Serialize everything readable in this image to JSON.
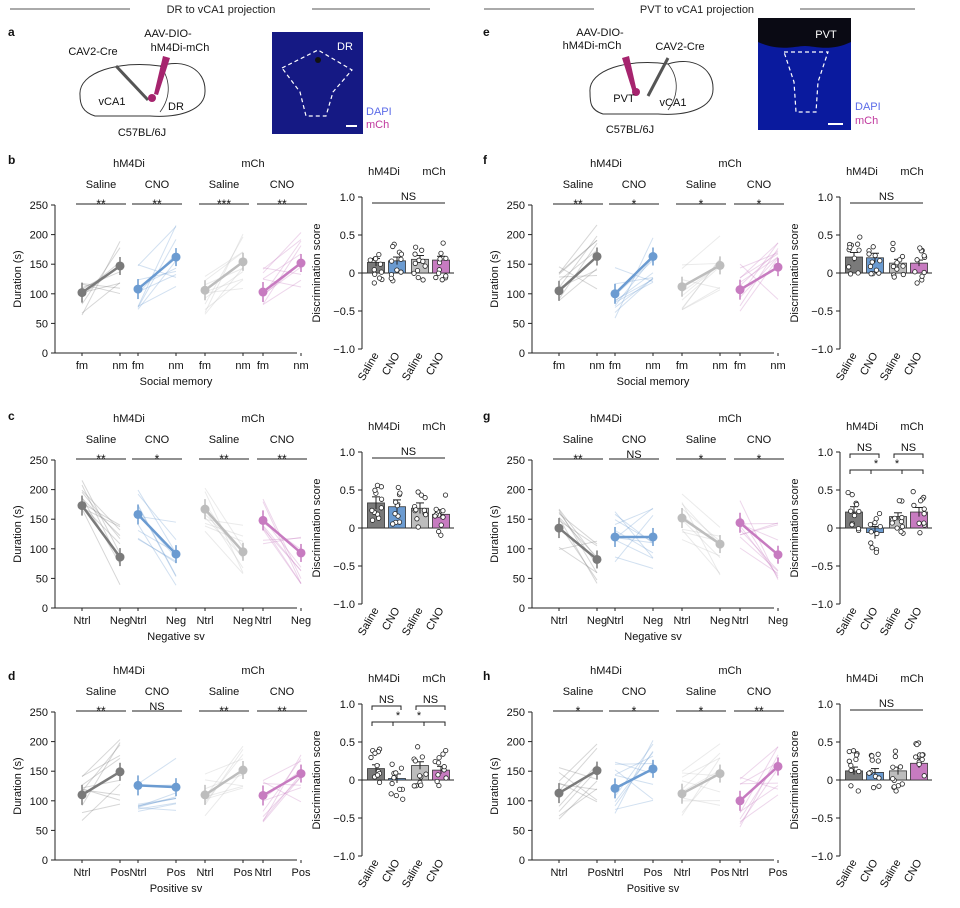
{
  "colors": {
    "hm4di_saline": "#7a7a7a",
    "hm4di_cno": "#6b9bd1",
    "mch_saline": "#bdbdbd",
    "mch_cno": "#c77bc0",
    "dapi": "#5b6be8",
    "mch_text": "#c0399e",
    "axis": "#222222"
  },
  "sections": {
    "left": {
      "header": "DR to vCA1 projection"
    },
    "right": {
      "header": "PVT to vCA1 projection"
    }
  },
  "panel_a": {
    "label": "a",
    "virus": "AAV-DIO-",
    "virus2": "hM4Di-mCh",
    "cav": "CAV2-Cre",
    "region1": "vCA1",
    "region2": "DR",
    "mouse": "C57BL/6J",
    "micrograph_label": "DR",
    "dapi": "DAPI",
    "mch": "mCh"
  },
  "panel_e": {
    "label": "e",
    "virus": "AAV-DIO-",
    "virus2": "hM4Di-mCh",
    "cav": "CAV2-Cre",
    "region1": "PVT",
    "region2": "vCA1",
    "mouse": "C57BL/6J",
    "micrograph_label": "PVT",
    "dapi": "DAPI",
    "mch": "mCh"
  },
  "chart_data": [
    {
      "panel": "b",
      "type": "line",
      "title": "",
      "ylabel": "Duration (s)",
      "xlabel": "Social memory",
      "ylim": [
        0,
        250
      ],
      "yticks": [
        0,
        50,
        100,
        150,
        200,
        250
      ],
      "group_labels": [
        "hM4Di",
        "mCh"
      ],
      "conditions": [
        "Saline",
        "CNO",
        "Saline",
        "CNO"
      ],
      "significance": [
        "**",
        "**",
        "***",
        "**"
      ],
      "xticks": [
        "fm",
        "nm"
      ],
      "series": [
        {
          "name": "hM4Di Saline",
          "values": [
            102,
            147
          ]
        },
        {
          "name": "hM4Di CNO",
          "values": [
            108,
            162
          ]
        },
        {
          "name": "mCh Saline",
          "values": [
            106,
            154
          ]
        },
        {
          "name": "mCh CNO",
          "values": [
            103,
            152
          ]
        }
      ]
    },
    {
      "panel": "b",
      "type": "bar",
      "ylabel": "Discrimination score",
      "ylim": [
        -1.0,
        1.0
      ],
      "yticks": [
        "1.0",
        "0.5",
        "0",
        "−0.5",
        "−1.0"
      ],
      "group_labels": [
        "hM4Di",
        "mCh"
      ],
      "categories": [
        "Saline",
        "CNO",
        "Saline",
        "CNO"
      ],
      "values": [
        0.14,
        0.16,
        0.18,
        0.17
      ],
      "errors": [
        0.05,
        0.05,
        0.05,
        0.05
      ],
      "annotations": [
        {
          "text": "NS",
          "from": 0,
          "to": 3,
          "level": 1
        }
      ]
    },
    {
      "panel": "c",
      "type": "line",
      "ylabel": "Duration (s)",
      "xlabel": "Negative sv",
      "ylim": [
        0,
        250
      ],
      "yticks": [
        0,
        50,
        100,
        150,
        200,
        250
      ],
      "group_labels": [
        "hM4Di",
        "mCh"
      ],
      "conditions": [
        "Saline",
        "CNO",
        "Saline",
        "CNO"
      ],
      "significance": [
        "**",
        "*",
        "**",
        "**"
      ],
      "xticks": [
        "Ntrl",
        "Neg"
      ],
      "series": [
        {
          "name": "hM4Di Saline",
          "values": [
            173,
            86
          ]
        },
        {
          "name": "hM4Di CNO",
          "values": [
            158,
            91
          ]
        },
        {
          "name": "mCh Saline",
          "values": [
            167,
            95
          ]
        },
        {
          "name": "mCh CNO",
          "values": [
            148,
            93
          ]
        }
      ]
    },
    {
      "panel": "c",
      "type": "bar",
      "ylabel": "Discrimination score",
      "ylim": [
        -1.0,
        1.0
      ],
      "yticks": [
        "1.0",
        "0.5",
        "0",
        "−0.5",
        "−1.0"
      ],
      "group_labels": [
        "hM4Di",
        "mCh"
      ],
      "categories": [
        "Saline",
        "CNO",
        "Saline",
        "CNO"
      ],
      "values": [
        0.33,
        0.28,
        0.26,
        0.18
      ],
      "errors": [
        0.08,
        0.09,
        0.07,
        0.06
      ],
      "annotations": [
        {
          "text": "NS",
          "from": 0,
          "to": 3,
          "level": 1
        }
      ]
    },
    {
      "panel": "d",
      "type": "line",
      "ylabel": "Duration (s)",
      "xlabel": "Positive sv",
      "ylim": [
        0,
        250
      ],
      "yticks": [
        0,
        50,
        100,
        150,
        200,
        250
      ],
      "group_labels": [
        "hM4Di",
        "mCh"
      ],
      "conditions": [
        "Saline",
        "CNO",
        "Saline",
        "CNO"
      ],
      "significance": [
        "**",
        "NS",
        "**",
        "**"
      ],
      "xticks": [
        "Ntrl",
        "Pos"
      ],
      "series": [
        {
          "name": "hM4Di Saline",
          "values": [
            110,
            149
          ]
        },
        {
          "name": "hM4Di CNO",
          "values": [
            126,
            123
          ]
        },
        {
          "name": "mCh Saline",
          "values": [
            110,
            152
          ]
        },
        {
          "name": "mCh CNO",
          "values": [
            109,
            146
          ]
        }
      ]
    },
    {
      "panel": "d",
      "type": "bar",
      "ylabel": "Discrimination score",
      "ylim": [
        -1.0,
        1.0
      ],
      "yticks": [
        "1.0",
        "0.5",
        "0",
        "−0.5",
        "−1.0"
      ],
      "group_labels": [
        "hM4Di",
        "mCh"
      ],
      "categories": [
        "Saline",
        "CNO",
        "Saline",
        "CNO"
      ],
      "values": [
        0.15,
        0.02,
        0.19,
        0.13
      ],
      "errors": [
        0.05,
        0.06,
        0.05,
        0.05
      ],
      "annotations": [
        {
          "text": "NS",
          "from": 0,
          "to": 1,
          "level": 2
        },
        {
          "text": "NS",
          "from": 2,
          "to": 3,
          "level": 2
        },
        {
          "text": "*",
          "from": 0,
          "to": 2,
          "level": 1
        },
        {
          "text": "*",
          "from": 1,
          "to": 3,
          "level": 1
        }
      ]
    },
    {
      "panel": "f",
      "type": "line",
      "ylabel": "Duration (s)",
      "xlabel": "Social memory",
      "ylim": [
        0,
        250
      ],
      "yticks": [
        0,
        50,
        100,
        150,
        200,
        250
      ],
      "group_labels": [
        "hM4Di",
        "mCh"
      ],
      "conditions": [
        "Saline",
        "CNO",
        "Saline",
        "CNO"
      ],
      "significance": [
        "**",
        "*",
        "*",
        "*"
      ],
      "xticks": [
        "fm",
        "nm"
      ],
      "series": [
        {
          "name": "hM4Di Saline",
          "values": [
            105,
            163
          ]
        },
        {
          "name": "hM4Di CNO",
          "values": [
            100,
            163
          ]
        },
        {
          "name": "mCh Saline",
          "values": [
            112,
            148
          ]
        },
        {
          "name": "mCh CNO",
          "values": [
            107,
            145
          ]
        }
      ]
    },
    {
      "panel": "f",
      "type": "bar",
      "ylabel": "Discrimination score",
      "ylim": [
        -1.0,
        1.0
      ],
      "yticks": [
        "1.0",
        "0.5",
        "0",
        "−0.5",
        "−1.0"
      ],
      "group_labels": [
        "hM4Di",
        "mCh"
      ],
      "categories": [
        "Saline",
        "CNO",
        "Saline",
        "CNO"
      ],
      "values": [
        0.21,
        0.2,
        0.13,
        0.13
      ],
      "errors": [
        0.06,
        0.06,
        0.05,
        0.04
      ],
      "annotations": [
        {
          "text": "NS",
          "from": 0,
          "to": 3,
          "level": 1
        }
      ]
    },
    {
      "panel": "g",
      "type": "line",
      "ylabel": "Duration (s)",
      "xlabel": "Negative sv",
      "ylim": [
        0,
        250
      ],
      "yticks": [
        0,
        50,
        100,
        150,
        200,
        250
      ],
      "group_labels": [
        "hM4Di",
        "mCh"
      ],
      "conditions": [
        "Saline",
        "CNO",
        "Saline",
        "CNO"
      ],
      "significance": [
        "**",
        "NS",
        "*",
        "*"
      ],
      "xticks": [
        "Ntrl",
        "Neg"
      ],
      "series": [
        {
          "name": "hM4Di Saline",
          "values": [
            135,
            82
          ]
        },
        {
          "name": "hM4Di CNO",
          "values": [
            120,
            120
          ]
        },
        {
          "name": "mCh Saline",
          "values": [
            152,
            108
          ]
        },
        {
          "name": "mCh CNO",
          "values": [
            144,
            90
          ]
        }
      ]
    },
    {
      "panel": "g",
      "type": "bar",
      "ylabel": "Discrimination score",
      "ylim": [
        -1.0,
        1.0
      ],
      "yticks": [
        "1.0",
        "0.5",
        "0",
        "−0.5",
        "−1.0"
      ],
      "group_labels": [
        "hM4Di",
        "mCh"
      ],
      "categories": [
        "Saline",
        "CNO",
        "Saline",
        "CNO"
      ],
      "values": [
        0.21,
        -0.06,
        0.15,
        0.21
      ],
      "errors": [
        0.07,
        0.08,
        0.05,
        0.06
      ],
      "annotations": [
        {
          "text": "NS",
          "from": 0,
          "to": 1,
          "level": 2
        },
        {
          "text": "NS",
          "from": 2,
          "to": 3,
          "level": 2
        },
        {
          "text": "*",
          "from": 0,
          "to": 2,
          "level": 1
        },
        {
          "text": "*",
          "from": 1,
          "to": 3,
          "level": 1
        }
      ]
    },
    {
      "panel": "h",
      "type": "line",
      "ylabel": "Duration (s)",
      "xlabel": "Positive sv",
      "ylim": [
        0,
        250
      ],
      "yticks": [
        0,
        50,
        100,
        150,
        200,
        250
      ],
      "group_labels": [
        "hM4Di",
        "mCh"
      ],
      "conditions": [
        "Saline",
        "CNO",
        "Saline",
        "CNO"
      ],
      "significance": [
        "*",
        "*",
        "*",
        "**"
      ],
      "xticks": [
        "Ntrl",
        "Pos"
      ],
      "series": [
        {
          "name": "hM4Di Saline",
          "values": [
            113,
            151
          ]
        },
        {
          "name": "hM4Di CNO",
          "values": [
            121,
            154
          ]
        },
        {
          "name": "mCh Saline",
          "values": [
            112,
            146
          ]
        },
        {
          "name": "mCh CNO",
          "values": [
            100,
            158
          ]
        }
      ]
    },
    {
      "panel": "h",
      "type": "bar",
      "ylabel": "Discrimination score",
      "ylim": [
        -1.0,
        1.0
      ],
      "yticks": [
        "1.0",
        "0.5",
        "0",
        "−0.5",
        "−1.0"
      ],
      "group_labels": [
        "hM4Di",
        "mCh"
      ],
      "categories": [
        "Saline",
        "CNO",
        "Saline",
        "CNO"
      ],
      "values": [
        0.12,
        0.1,
        0.12,
        0.22
      ],
      "errors": [
        0.05,
        0.05,
        0.05,
        0.06
      ],
      "annotations": [
        {
          "text": "NS",
          "from": 0,
          "to": 3,
          "level": 1
        }
      ]
    }
  ]
}
